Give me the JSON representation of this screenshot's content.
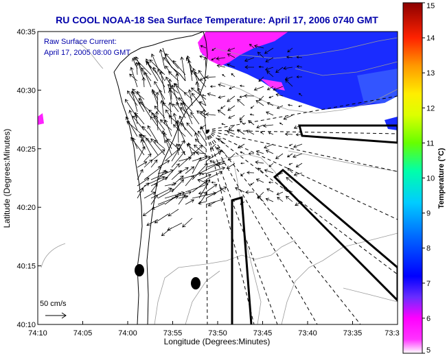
{
  "chart_data": {
    "type": "map-vector-field",
    "title": "RU COOL  NOAA-18  Sea Surface Temperature:  April 17, 2006 0740 GMT",
    "title_color": "#0000aa",
    "xlabel": "Longitude (Degrees:Minutes)",
    "ylabel": "Latitude (Degrees:Minutes)",
    "x_ticks": [
      "74:10",
      "74:05",
      "74:00",
      "73:55",
      "73:50",
      "73:45",
      "73:40",
      "73:35",
      "73:3"
    ],
    "y_ticks": [
      "40:10",
      "40:15",
      "40:20",
      "40:25",
      "40:30",
      "40:35"
    ],
    "xlim": [
      -74.1667,
      -73.5
    ],
    "ylim": [
      40.1667,
      40.5833
    ],
    "annotation_lines": [
      "Raw Surface Current:",
      "April 17, 2005 08:00 GMT"
    ],
    "annotation_color": "#0000aa",
    "scale_label": "50 cm/s",
    "colorbar": {
      "label": "Temperature (°C)",
      "range": [
        5,
        15
      ],
      "ticks": [
        "5",
        "6",
        "7",
        "8",
        "9",
        "10",
        "11",
        "12",
        "13",
        "14",
        "15"
      ],
      "colors": [
        "#ff00ff",
        "#0000ff",
        "#00ccff",
        "#00ff99",
        "#aaff00",
        "#ffff00",
        "#ff8800",
        "#ff0000",
        "#8b0000"
      ]
    },
    "sst_color_shown": "#1a2cff",
    "grid": false
  }
}
